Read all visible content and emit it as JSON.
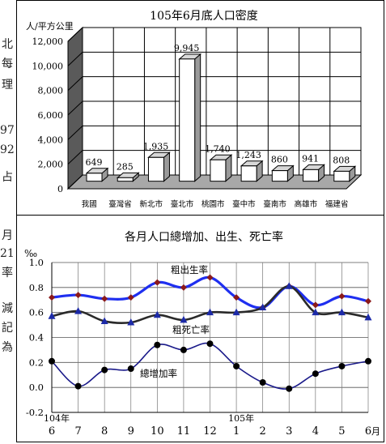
{
  "left_edge_chars": [
    {
      "key": "c1",
      "text": "北"
    },
    {
      "key": "c2",
      "text": "每"
    },
    {
      "key": "c3",
      "text": "理"
    },
    {
      "key": "c4",
      "text": "97"
    },
    {
      "key": "c5",
      "text": "92"
    },
    {
      "key": "c6",
      "text": "占"
    },
    {
      "key": "c7",
      "text": "月"
    },
    {
      "key": "c8",
      "text": "21"
    },
    {
      "key": "c9",
      "text": "率"
    },
    {
      "key": "c10",
      "text": "減"
    },
    {
      "key": "c11",
      "text": "記"
    },
    {
      "key": "c12",
      "text": "為"
    }
  ],
  "chart_data": [
    {
      "type": "bar",
      "title": "105年6月底人口密度",
      "ylabel": "人/平方公里",
      "categories": [
        "我國",
        "臺灣省",
        "新北市",
        "臺北市",
        "桃園市",
        "臺中市",
        "臺南市",
        "高雄市",
        "福建省"
      ],
      "values": [
        649,
        285,
        1935,
        9945,
        1740,
        1243,
        860,
        941,
        808
      ],
      "data_labels": [
        "649",
        "285",
        "1,935",
        "9,945",
        "1,740",
        "1,243",
        "860",
        "941",
        "808"
      ],
      "ylim": [
        0,
        12000
      ],
      "yticks": [
        "0",
        "2,000",
        "4,000",
        "6,000",
        "8,000",
        "10,000",
        "12,000"
      ],
      "grid": true,
      "style": "3d-column",
      "colors": {
        "bar_front": "#ffffff",
        "bar_side": "#9a9a9a",
        "bar_top": "#d8d8d8",
        "wall": "#5a5a5a",
        "floor": "#a8a8a8"
      }
    },
    {
      "type": "line",
      "title": "各月人口總增加、出生、死亡率",
      "ylabel": "‰",
      "xunit": "月",
      "categories": [
        "6",
        "7",
        "8",
        "9",
        "10",
        "11",
        "12",
        "1",
        "2",
        "3",
        "4",
        "5",
        "6"
      ],
      "year_labels": [
        {
          "text": "104年",
          "at_index": 0
        },
        {
          "text": "105年",
          "at_index": 7
        }
      ],
      "ylim": [
        -0.2,
        1.0
      ],
      "yticks": [
        "-0.2",
        "0.0",
        "0.2",
        "0.4",
        "0.6",
        "0.8",
        "1.0"
      ],
      "grid": true,
      "series": [
        {
          "name": "粗出生率",
          "values": [
            0.72,
            0.74,
            0.71,
            0.72,
            0.84,
            0.8,
            0.88,
            0.72,
            0.64,
            0.81,
            0.66,
            0.73,
            0.69
          ],
          "color": "#1f2ff0",
          "marker": "diamond",
          "marker_color": "#8b1a1a"
        },
        {
          "name": "粗死亡率",
          "values": [
            0.57,
            0.61,
            0.53,
            0.52,
            0.58,
            0.54,
            0.6,
            0.6,
            0.64,
            0.81,
            0.6,
            0.6,
            0.56
          ],
          "color": "#2a2a2a",
          "marker": "triangle",
          "marker_color": "#1c2aa8"
        },
        {
          "name": "總增加率",
          "values": [
            0.21,
            0.01,
            0.14,
            0.15,
            0.34,
            0.3,
            0.35,
            0.17,
            0.04,
            -0.01,
            0.11,
            0.17,
            0.21
          ],
          "color": "#1a1a8a",
          "marker": "circle",
          "marker_color": "#000000"
        }
      ]
    }
  ]
}
